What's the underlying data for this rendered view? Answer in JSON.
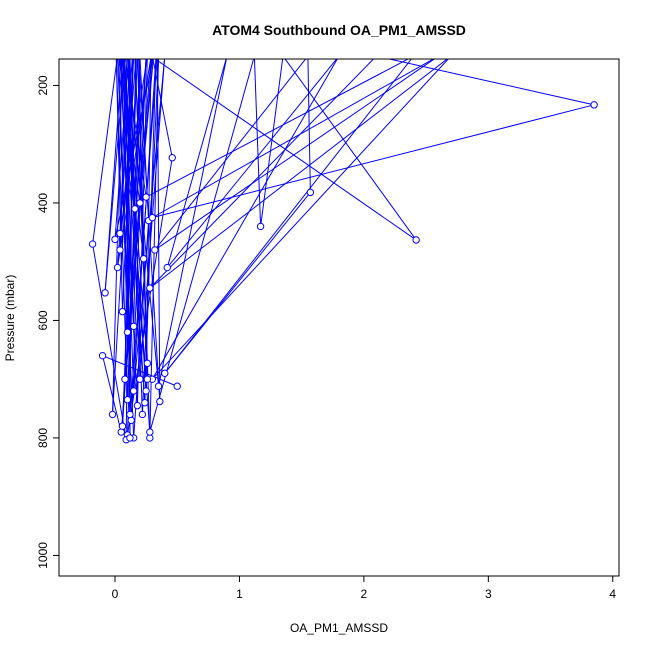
{
  "chart_data": {
    "type": "line",
    "title": "ATOM4 Southbound OA_PM1_AMSSD",
    "xlabel": "OA_PM1_AMSSD",
    "ylabel": "Pressure (mbar)",
    "xlim": [
      -0.45,
      4.05
    ],
    "ylim": [
      1035,
      155
    ],
    "y_reversed": true,
    "x_ticks": [
      0,
      1,
      2,
      3,
      4
    ],
    "x_tick_labels": [
      "0",
      "1",
      "2",
      "3",
      "4"
    ],
    "y_ticks": [
      200,
      400,
      600,
      800,
      1000
    ],
    "y_tick_labels": [
      "200",
      "400",
      "600",
      "800",
      "1000"
    ],
    "grid": false,
    "legend": "none",
    "line_color": "#0000ff",
    "marker": "open-circle",
    "series": [
      {
        "points": [
          [
            0.5,
            712
          ],
          [
            -0.1,
            660
          ],
          [
            0.05,
            790
          ],
          [
            0.3,
            150
          ],
          [
            0.46,
            323
          ],
          [
            0.1,
            795
          ],
          [
            0.2,
            150
          ],
          [
            0.27,
            430
          ],
          [
            0.15,
            800
          ],
          [
            0.02,
            150
          ],
          [
            -0.18,
            470
          ],
          [
            0.09,
            803
          ],
          [
            0.12,
            150
          ],
          [
            0.22,
            760
          ],
          [
            0.35,
            150
          ],
          [
            0.28,
            800
          ],
          [
            0.18,
            150
          ],
          [
            0.06,
            780
          ],
          [
            0.25,
            150
          ],
          [
            0.13,
            770
          ],
          [
            0.33,
            150
          ],
          [
            0.24,
            740
          ],
          [
            0.05,
            150
          ],
          [
            0.15,
            720
          ],
          [
            0.4,
            150
          ],
          [
            0.2,
            700
          ],
          [
            0.1,
            150
          ],
          [
            0.35,
            712
          ],
          [
            0.9,
            150
          ],
          [
            0.42,
            510
          ],
          [
            1.8,
            150
          ],
          [
            0.3,
            700
          ],
          [
            2.7,
            150
          ],
          [
            0.28,
            545
          ],
          [
            2.1,
            150
          ],
          [
            3.85,
            233
          ],
          [
            0.3,
            425
          ],
          [
            2.6,
            150
          ],
          [
            0.32,
            480
          ],
          [
            1.55,
            150
          ],
          [
            1.57,
            382
          ],
          [
            0.4,
            690
          ],
          [
            2.4,
            150
          ],
          [
            0.25,
            390
          ],
          [
            0.08,
            150
          ],
          [
            -0.08,
            553
          ],
          [
            0.06,
            150
          ],
          [
            -0.02,
            760
          ],
          [
            0.15,
            150
          ],
          [
            0.06,
            585
          ],
          [
            0.01,
            150
          ],
          [
            0.1,
            735
          ],
          [
            0.2,
            150
          ],
          [
            0.15,
            610
          ],
          [
            0.07,
            150
          ],
          [
            0.26,
            673
          ],
          [
            0.16,
            150
          ],
          [
            0.23,
            495
          ],
          [
            0.04,
            150
          ],
          [
            0.18,
            745
          ],
          [
            0.26,
            150
          ],
          [
            0.04,
            452
          ],
          [
            0.12,
            150
          ],
          [
            0.08,
            700
          ],
          [
            0.29,
            150
          ],
          [
            0.02,
            510
          ],
          [
            0.14,
            150
          ],
          [
            0.12,
            800
          ],
          [
            0.09,
            150
          ],
          [
            0.04,
            480
          ],
          [
            0.17,
            150
          ],
          [
            0.1,
            620
          ],
          [
            0.03,
            150
          ],
          [
            0.2,
            400
          ],
          [
            0.31,
            150
          ],
          [
            0.0,
            462
          ],
          [
            0.11,
            150
          ],
          [
            0.16,
            410
          ],
          [
            0.06,
            150
          ],
          [
            0.28,
            790
          ],
          [
            1.12,
            150
          ],
          [
            1.17,
            440
          ],
          [
            1.35,
            150
          ],
          [
            2.42,
            463
          ],
          [
            0.29,
            150
          ],
          [
            0.25,
            720
          ],
          [
            0.07,
            150
          ],
          [
            0.12,
            760
          ],
          [
            0.34,
            150
          ],
          [
            0.36,
            738
          ],
          [
            0.19,
            150
          ],
          [
            0.26,
            700
          ]
        ]
      }
    ]
  }
}
